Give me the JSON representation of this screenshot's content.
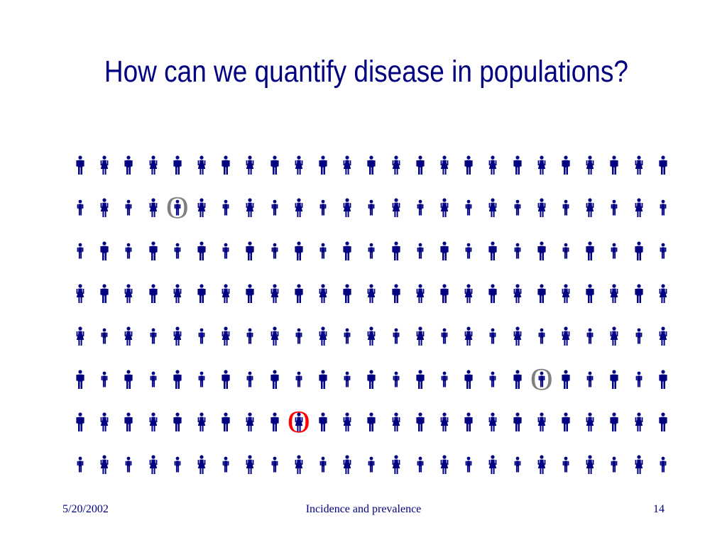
{
  "slide": {
    "title": "How can we quantify disease in populations?",
    "footer": {
      "date": "5/20/2002",
      "title": "Incidence and prevalence",
      "page": "14"
    }
  },
  "population_grid": {
    "rows": 8,
    "columns": 25,
    "icon": "person-icon",
    "icon_color": "#000080",
    "case_marker_glyph": "O",
    "cases": [
      {
        "row": 2,
        "column": 5,
        "color": "#808080"
      },
      {
        "row": 6,
        "column": 20,
        "color": "#808080"
      },
      {
        "row": 7,
        "column": 10,
        "color": "#ff0000"
      }
    ]
  }
}
